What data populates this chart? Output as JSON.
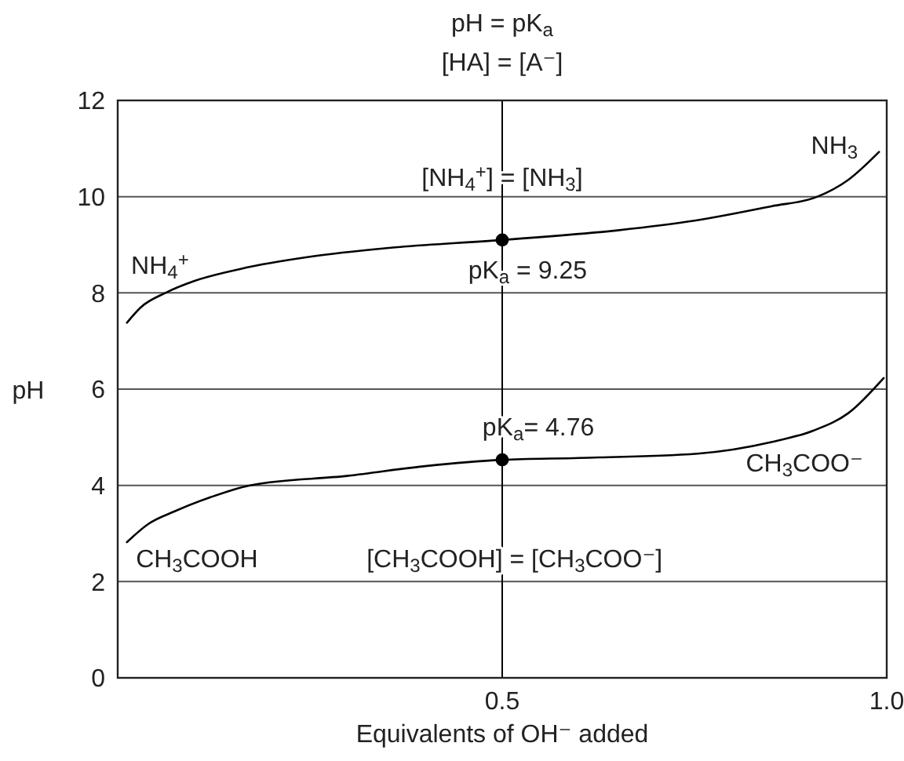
{
  "chart_data": {
    "type": "line",
    "title": "pH = pK$_{a}$",
    "subtitle": "[HA] = [A⁻]",
    "xlabel": "Equivalents of OH⁻ added",
    "ylabel": "pH",
    "xlim": [
      0,
      1
    ],
    "xticks": [
      0.5,
      {
        "value": 1,
        "label": "1.0"
      }
    ],
    "ylim": [
      0,
      12
    ],
    "yticks": [
      0,
      2,
      4,
      6,
      8,
      10,
      12
    ],
    "grid": "y",
    "series": [
      {
        "color": "#000000",
        "x": [
          0.012,
          0.03,
          0.062,
          0.1,
          0.16,
          0.25,
          0.35,
          0.5,
          0.65,
          0.75,
          0.85,
          0.91,
          0.95,
          0.99
        ],
        "values": [
          7.38,
          7.7,
          8,
          8.25,
          8.5,
          8.75,
          8.93,
          9.1,
          9.3,
          9.5,
          9.8,
          10,
          10.35,
          10.93
        ]
      },
      {
        "color": "#000000",
        "x": [
          0.012,
          0.04,
          0.074,
          0.12,
          0.172,
          0.3,
          0.4,
          0.5,
          0.6,
          0.754,
          0.85,
          0.905,
          0.95,
          0.996
        ],
        "values": [
          2.82,
          3.2,
          3.46,
          3.75,
          4,
          4.2,
          4.4,
          4.53,
          4.57,
          4.66,
          4.9,
          5.14,
          5.5,
          6.23
        ]
      },
      {
        "type": "scatter",
        "marker": "circle",
        "color": "#000000",
        "x": [
          0.5,
          0.5
        ],
        "values": [
          9.1,
          4.53
        ]
      }
    ],
    "ref_lines": [
      {
        "axis": "x",
        "value": 0.5,
        "color": "#000000"
      }
    ],
    "annotations": [
      "[NH$_{4}$$^{+}$] = [NH$_{3}$]",
      "pK$_{a}$ = 9.25",
      "NH$_{3}$",
      "NH$_{4}$$^{+}$",
      "pK$_{a}$= 4.76",
      "CH$_{3}$COO⁻",
      "CH$_{3}$COOH",
      "[CH$_{3}$COOH] = [CH$_{3}$COO⁻]"
    ]
  }
}
